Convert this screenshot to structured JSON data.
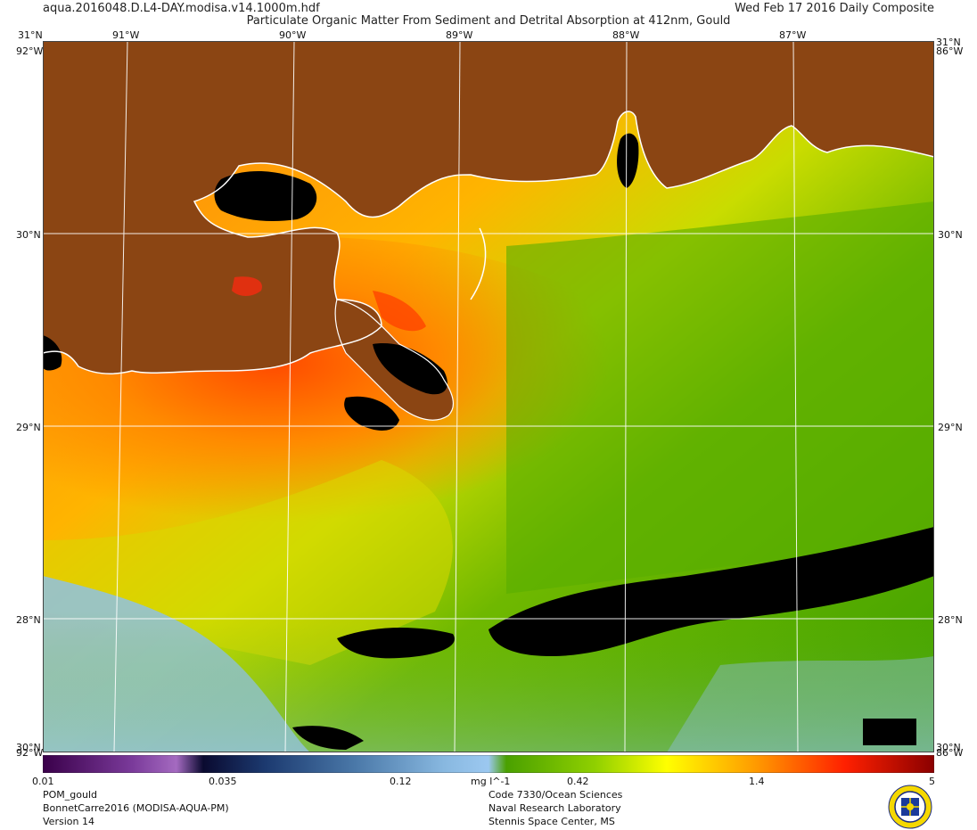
{
  "header": {
    "filename": "aqua.2016048.D.L4-DAY.modisa.v14.1000m.hdf",
    "date": "Wed Feb 17 2016 Daily Composite",
    "title": "Particulate Organic Matter From Sediment and Detrital Absorption at 412nm, Gould"
  },
  "map": {
    "lon_labels": [
      "91°W",
      "90°W",
      "89°W",
      "88°W",
      "87°W"
    ],
    "lat_labels": [
      "30°N",
      "29°N",
      "28°N"
    ],
    "corner_labels": {
      "top_left": "31°N",
      "top_right": "31°N",
      "bottom_left": "30°N",
      "bottom_right": "30°N",
      "top_left_stack": "92°W",
      "top_right_stack": "86°W",
      "bottom_left_stack": "92°W",
      "bottom_right_stack": "86°W"
    },
    "colors": {
      "land": "#8b4513",
      "nodata": "#000000",
      "coast": "#ffffff"
    }
  },
  "colorbar": {
    "ticks": [
      "0.01",
      "0.035",
      "0.12",
      "0.42",
      "1.4",
      "5"
    ],
    "unit": "mg l^-1",
    "scale": "log",
    "range": [
      0.01,
      5
    ]
  },
  "footer": {
    "left": [
      "POM_gould",
      "BonnetCarre2016 (MODISA-AQUA-PM)",
      "Version 14"
    ],
    "right": [
      "Code 7330/Ocean Sciences",
      "Naval Research Laboratory",
      "Stennis Space Center, MS"
    ]
  }
}
